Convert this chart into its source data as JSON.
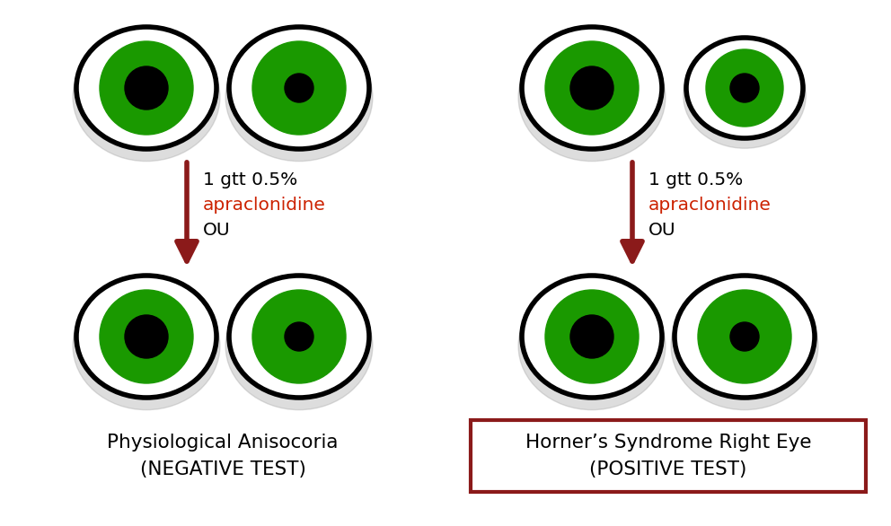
{
  "bg_color": "#ffffff",
  "arrow_color": "#8B1A1A",
  "green_color": "#1a9900",
  "black_color": "#000000",
  "white_color": "#ffffff",
  "red_border_color": "#8B1A1A",
  "text_color": "#000000",
  "apraclo_color": "#cc2200",
  "shadow_color": "#aaaaaa",
  "left_label_line1": "Physiological Anisocoria",
  "left_label_line2": "(NEGATIVE TEST)",
  "right_label_line1": "Horner’s Syndrome Right Eye",
  "right_label_line2": "(POSITIVE TEST)",
  "arrow_text_line1": "1 gtt 0.5%",
  "arrow_text_line2": "apraclonidine",
  "arrow_text_line3": "OU",
  "figsize": [
    9.92,
    5.86
  ],
  "dpi": 100
}
